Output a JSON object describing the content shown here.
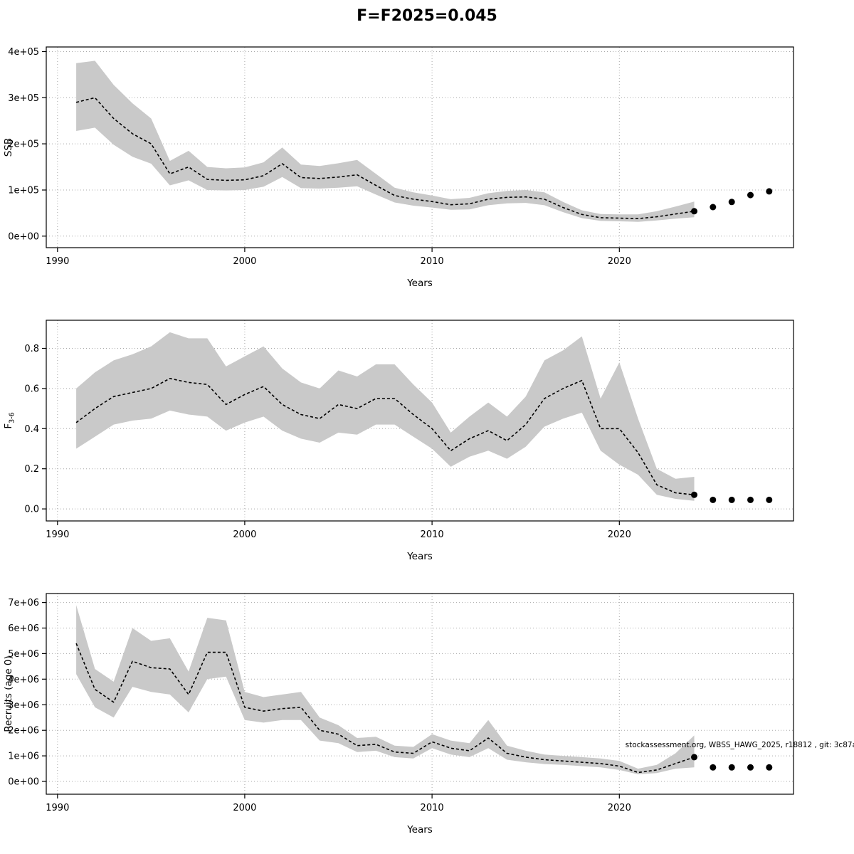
{
  "page": {
    "title": "F=F2025=0.045",
    "watermark": "stockassessment.org, WBSS_HAWG_2025, r18812 , git: 3c87a",
    "band_color": "#c9c9c9",
    "line_color": "#000000",
    "dot_radius": 4.5
  },
  "chart_data": [
    {
      "type": "line",
      "name": "ssb",
      "title": "",
      "xlabel": "Years",
      "ylabel": "SSB",
      "xlim": [
        1989.4,
        2029.3
      ],
      "ylim": [
        -25000,
        410000
      ],
      "xticks": [
        1990,
        2000,
        2010,
        2020
      ],
      "xtick_labels": [
        "1990",
        "2000",
        "2010",
        "2020"
      ],
      "yticks": [
        0,
        100000,
        200000,
        300000,
        400000
      ],
      "ytick_labels": [
        "0e+00",
        "1e+05",
        "2e+05",
        "3e+05",
        "4e+05"
      ],
      "x": [
        1991,
        1992,
        1993,
        1994,
        1995,
        1996,
        1997,
        1998,
        1999,
        2000,
        2001,
        2002,
        2003,
        2004,
        2005,
        2006,
        2007,
        2008,
        2009,
        2010,
        2011,
        2012,
        2013,
        2014,
        2015,
        2016,
        2017,
        2018,
        2019,
        2020,
        2021,
        2022,
        2023,
        2024
      ],
      "y": [
        290000,
        300000,
        255000,
        222000,
        200000,
        135000,
        150000,
        123000,
        121000,
        122000,
        131000,
        157000,
        127000,
        125000,
        128000,
        133000,
        110000,
        88000,
        80000,
        75000,
        68000,
        70000,
        80000,
        84000,
        85000,
        80000,
        62000,
        47000,
        40000,
        39000,
        38000,
        42000,
        48000,
        54000
      ],
      "upper": [
        375000,
        380000,
        328000,
        288000,
        255000,
        163000,
        185000,
        150000,
        147000,
        149000,
        160000,
        192000,
        155000,
        152000,
        158000,
        165000,
        135000,
        105000,
        95000,
        88000,
        80000,
        83000,
        93000,
        98000,
        100000,
        95000,
        74000,
        56000,
        48000,
        47000,
        47000,
        54000,
        64000,
        75000
      ],
      "lower": [
        228000,
        235000,
        198000,
        172000,
        157000,
        110000,
        121000,
        100000,
        99000,
        100000,
        107000,
        128000,
        104000,
        103000,
        105000,
        108000,
        90000,
        73000,
        66000,
        62000,
        57000,
        58000,
        67000,
        71000,
        72000,
        67000,
        52000,
        39000,
        33000,
        32000,
        31000,
        34000,
        38000,
        41000
      ],
      "forecast_x": [
        2024,
        2025,
        2026,
        2027,
        2028
      ],
      "forecast_y": [
        54000,
        63000,
        74000,
        89000,
        97000
      ]
    },
    {
      "type": "line",
      "name": "fbar",
      "title": "",
      "xlabel": "Years",
      "ylabel": "F",
      "ylabel_sub": "3-6",
      "xlim": [
        1989.4,
        2029.3
      ],
      "ylim": [
        -0.06,
        0.94
      ],
      "xticks": [
        1990,
        2000,
        2010,
        2020
      ],
      "xtick_labels": [
        "1990",
        "2000",
        "2010",
        "2020"
      ],
      "yticks": [
        0.0,
        0.2,
        0.4,
        0.6,
        0.8
      ],
      "ytick_labels": [
        "0.0",
        "0.2",
        "0.4",
        "0.6",
        "0.8"
      ],
      "x": [
        1991,
        1992,
        1993,
        1994,
        1995,
        1996,
        1997,
        1998,
        1999,
        2000,
        2001,
        2002,
        2003,
        2004,
        2005,
        2006,
        2007,
        2008,
        2009,
        2010,
        2011,
        2012,
        2013,
        2014,
        2015,
        2016,
        2017,
        2018,
        2019,
        2020,
        2021,
        2022,
        2023,
        2024
      ],
      "y": [
        0.43,
        0.5,
        0.56,
        0.58,
        0.6,
        0.65,
        0.63,
        0.62,
        0.52,
        0.57,
        0.61,
        0.52,
        0.47,
        0.45,
        0.52,
        0.5,
        0.55,
        0.55,
        0.47,
        0.4,
        0.29,
        0.35,
        0.39,
        0.34,
        0.42,
        0.55,
        0.6,
        0.64,
        0.4,
        0.4,
        0.28,
        0.12,
        0.08,
        0.07
      ],
      "upper": [
        0.6,
        0.68,
        0.74,
        0.77,
        0.81,
        0.88,
        0.85,
        0.85,
        0.71,
        0.76,
        0.81,
        0.7,
        0.63,
        0.6,
        0.69,
        0.66,
        0.72,
        0.72,
        0.62,
        0.53,
        0.38,
        0.46,
        0.53,
        0.46,
        0.56,
        0.74,
        0.79,
        0.86,
        0.55,
        0.73,
        0.45,
        0.2,
        0.15,
        0.16
      ],
      "lower": [
        0.3,
        0.36,
        0.42,
        0.44,
        0.45,
        0.49,
        0.47,
        0.46,
        0.39,
        0.43,
        0.46,
        0.39,
        0.35,
        0.33,
        0.38,
        0.37,
        0.42,
        0.42,
        0.36,
        0.3,
        0.21,
        0.26,
        0.29,
        0.25,
        0.31,
        0.41,
        0.45,
        0.48,
        0.29,
        0.22,
        0.17,
        0.07,
        0.05,
        0.04
      ],
      "forecast_x": [
        2024,
        2025,
        2026,
        2027,
        2028
      ],
      "forecast_y": [
        0.07,
        0.045,
        0.045,
        0.045,
        0.045
      ]
    },
    {
      "type": "line",
      "name": "recruits",
      "title": "",
      "xlabel": "Years",
      "ylabel": "Recruits (age 0)",
      "xlim": [
        1989.4,
        2029.3
      ],
      "ylim": [
        -500000,
        7350000
      ],
      "xticks": [
        1990,
        2000,
        2010,
        2020
      ],
      "xtick_labels": [
        "1990",
        "2000",
        "2010",
        "2020"
      ],
      "yticks": [
        0,
        1000000,
        2000000,
        3000000,
        4000000,
        5000000,
        6000000,
        7000000
      ],
      "ytick_labels": [
        "0e+00",
        "1e+06",
        "2e+06",
        "3e+06",
        "4e+06",
        "5e+06",
        "6e+06",
        "7e+06"
      ],
      "x": [
        1991,
        1992,
        1993,
        1994,
        1995,
        1996,
        1997,
        1998,
        1999,
        2000,
        2001,
        2002,
        2003,
        2004,
        2005,
        2006,
        2007,
        2008,
        2009,
        2010,
        2011,
        2012,
        2013,
        2014,
        2015,
        2016,
        2017,
        2018,
        2019,
        2020,
        2021,
        2022,
        2023,
        2024
      ],
      "y": [
        5400000,
        3600000,
        3100000,
        4700000,
        4450000,
        4400000,
        3400000,
        5050000,
        5050000,
        2900000,
        2750000,
        2850000,
        2900000,
        2000000,
        1850000,
        1400000,
        1450000,
        1150000,
        1100000,
        1550000,
        1300000,
        1200000,
        1700000,
        1100000,
        950000,
        850000,
        800000,
        750000,
        700000,
        600000,
        350000,
        450000,
        700000,
        950000
      ],
      "upper": [
        6900000,
        4400000,
        3900000,
        6000000,
        5500000,
        5600000,
        4300000,
        6400000,
        6300000,
        3500000,
        3300000,
        3400000,
        3500000,
        2500000,
        2200000,
        1700000,
        1750000,
        1400000,
        1350000,
        1850000,
        1600000,
        1500000,
        2400000,
        1400000,
        1200000,
        1050000,
        1000000,
        950000,
        900000,
        800000,
        500000,
        650000,
        1100000,
        1800000
      ],
      "lower": [
        4200000,
        2900000,
        2500000,
        3700000,
        3500000,
        3400000,
        2700000,
        4000000,
        4100000,
        2400000,
        2300000,
        2400000,
        2400000,
        1600000,
        1500000,
        1150000,
        1200000,
        950000,
        900000,
        1300000,
        1050000,
        950000,
        1300000,
        850000,
        750000,
        680000,
        650000,
        600000,
        550000,
        450000,
        280000,
        330000,
        500000,
        550000
      ],
      "forecast_x": [
        2024,
        2025,
        2026,
        2027,
        2028
      ],
      "forecast_y": [
        950000,
        550000,
        550000,
        550000,
        550000
      ]
    }
  ]
}
